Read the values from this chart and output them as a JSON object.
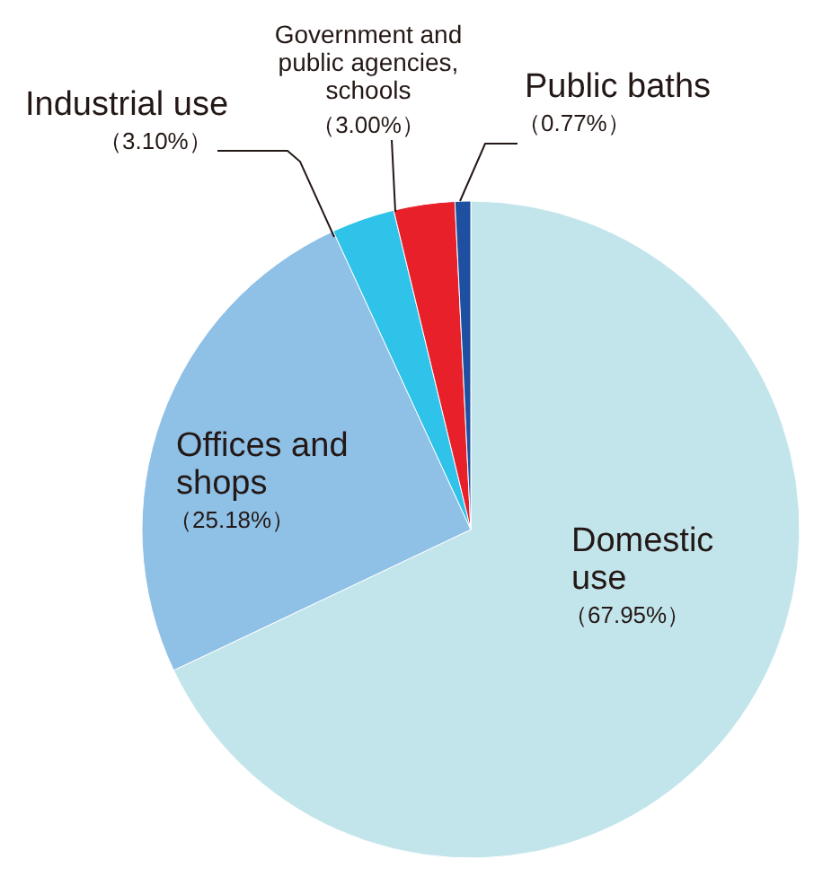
{
  "chart_data": {
    "type": "pie",
    "categories": [
      "Domestic use",
      "Offices and shops",
      "Industrial use",
      "Government and public agencies, schools",
      "Public baths"
    ],
    "values": [
      67.95,
      25.18,
      3.1,
      3.0,
      0.77
    ],
    "colors": [
      "#c2e5ec",
      "#8fc0e6",
      "#2fc3ea",
      "#e8202a",
      "#1f4fa0"
    ],
    "value_labels": [
      "（67.95%）",
      "（25.18%）",
      "（3.10%）",
      "（3.00%）",
      "（0.77%）"
    ]
  }
}
